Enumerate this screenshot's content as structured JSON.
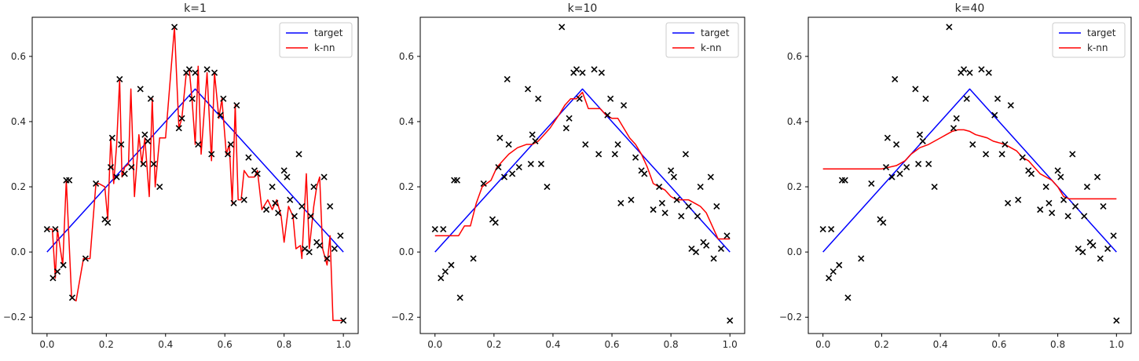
{
  "chart_data": [
    {
      "type": "line",
      "title": "k=1",
      "xlim": [
        -0.05,
        1.05
      ],
      "ylim": [
        -0.25,
        0.72
      ],
      "xticks": [
        "0.0",
        "0.2",
        "0.4",
        "0.6",
        "0.8",
        "1.0"
      ],
      "yticks": [
        "−0.2",
        "0.0",
        "0.2",
        "0.4",
        "0.6"
      ],
      "legend": {
        "placement": "top-right",
        "entries": [
          "target",
          "k-nn"
        ]
      },
      "grid": false,
      "series": [
        {
          "name": "target",
          "color": "#0000ff",
          "kind": "line",
          "x": [
            0,
            0.5,
            1
          ],
          "y": [
            0,
            0.5,
            0
          ]
        },
        {
          "name": "k-nn",
          "color": "#ff0000",
          "kind": "line",
          "x": [
            0.0,
            0.018,
            0.028,
            0.035,
            0.053,
            0.065,
            0.083,
            0.098,
            0.123,
            0.145,
            0.165,
            0.175,
            0.195,
            0.205,
            0.215,
            0.225,
            0.235,
            0.245,
            0.253,
            0.262,
            0.275,
            0.283,
            0.295,
            0.31,
            0.32,
            0.33,
            0.345,
            0.355,
            0.365,
            0.38,
            0.4,
            0.43,
            0.445,
            0.455,
            0.47,
            0.48,
            0.49,
            0.5,
            0.51,
            0.52,
            0.54,
            0.555,
            0.565,
            0.58,
            0.59,
            0.605,
            0.615,
            0.625,
            0.635,
            0.645,
            0.655,
            0.665,
            0.68,
            0.7,
            0.71,
            0.725,
            0.745,
            0.76,
            0.775,
            0.79,
            0.8,
            0.815,
            0.83,
            0.84,
            0.855,
            0.86,
            0.875,
            0.885,
            0.9,
            0.91,
            0.92,
            0.93,
            0.945,
            0.955,
            0.965,
            0.99,
            1.0
          ],
          "y": [
            0.07,
            0.07,
            -0.08,
            0.07,
            -0.04,
            0.22,
            -0.14,
            -0.15,
            -0.02,
            -0.02,
            0.21,
            0.21,
            0.2,
            0.1,
            0.35,
            0.21,
            0.33,
            0.53,
            0.23,
            0.26,
            0.27,
            0.5,
            0.17,
            0.36,
            0.27,
            0.35,
            0.17,
            0.47,
            0.2,
            0.35,
            0.35,
            0.69,
            0.38,
            0.41,
            0.55,
            0.56,
            0.46,
            0.33,
            0.57,
            0.3,
            0.55,
            0.28,
            0.55,
            0.41,
            0.47,
            0.3,
            0.33,
            0.15,
            0.45,
            0.16,
            0.16,
            0.25,
            0.23,
            0.23,
            0.25,
            0.13,
            0.16,
            0.13,
            0.16,
            0.11,
            0.03,
            0.14,
            0.11,
            0.01,
            0.02,
            -0.02,
            0.24,
            0.01,
            0.14,
            0.2,
            0.23,
            0.01,
            -0.04,
            0.05,
            -0.21,
            -0.21,
            -0.21
          ]
        },
        {
          "name": "",
          "color": "#000000",
          "kind": "scatter",
          "x": [
            0.0,
            0.02,
            0.028,
            0.035,
            0.055,
            0.065,
            0.075,
            0.085,
            0.13,
            0.165,
            0.195,
            0.205,
            0.215,
            0.22,
            0.235,
            0.245,
            0.25,
            0.262,
            0.285,
            0.315,
            0.325,
            0.33,
            0.34,
            0.35,
            0.36,
            0.38,
            0.43,
            0.445,
            0.455,
            0.47,
            0.48,
            0.49,
            0.5,
            0.51,
            0.54,
            0.555,
            0.565,
            0.585,
            0.595,
            0.61,
            0.62,
            0.63,
            0.64,
            0.665,
            0.68,
            0.7,
            0.71,
            0.74,
            0.76,
            0.77,
            0.78,
            0.8,
            0.81,
            0.82,
            0.835,
            0.85,
            0.86,
            0.87,
            0.885,
            0.89,
            0.9,
            0.91,
            0.92,
            0.935,
            0.945,
            0.955,
            0.97,
            0.99,
            1.0
          ],
          "y": [
            0.07,
            -0.08,
            0.07,
            -0.06,
            -0.04,
            0.22,
            0.22,
            -0.14,
            -0.02,
            0.21,
            0.1,
            0.09,
            0.26,
            0.35,
            0.23,
            0.53,
            0.33,
            0.24,
            0.26,
            0.5,
            0.27,
            0.36,
            0.34,
            0.47,
            0.27,
            0.2,
            0.69,
            0.38,
            0.41,
            0.55,
            0.56,
            0.47,
            0.55,
            0.33,
            0.56,
            0.3,
            0.55,
            0.42,
            0.47,
            0.3,
            0.33,
            0.15,
            0.45,
            0.16,
            0.29,
            0.25,
            0.24,
            0.13,
            0.2,
            0.15,
            0.12,
            0.25,
            0.23,
            0.16,
            0.11,
            0.3,
            0.14,
            0.01,
            0.0,
            0.11,
            0.2,
            0.03,
            0.02,
            0.23,
            -0.02,
            0.14,
            0.01,
            0.05,
            -0.21
          ]
        }
      ]
    },
    {
      "type": "line",
      "title": "k=10",
      "xlim": [
        -0.05,
        1.05
      ],
      "ylim": [
        -0.25,
        0.72
      ],
      "xticks": [
        "0.0",
        "0.2",
        "0.4",
        "0.6",
        "0.8",
        "1.0"
      ],
      "yticks": [
        "−0.2",
        "0.0",
        "0.2",
        "0.4",
        "0.6"
      ],
      "legend": {
        "placement": "top-right",
        "entries": [
          "target",
          "k-nn"
        ]
      },
      "grid": false,
      "series": [
        {
          "name": "target",
          "color": "#0000ff",
          "kind": "line",
          "x": [
            0,
            0.5,
            1
          ],
          "y": [
            0,
            0.5,
            0
          ]
        },
        {
          "name": "k-nn",
          "color": "#ff0000",
          "kind": "line",
          "x": [
            0.0,
            0.08,
            0.1,
            0.12,
            0.14,
            0.16,
            0.19,
            0.21,
            0.23,
            0.25,
            0.28,
            0.31,
            0.33,
            0.35,
            0.37,
            0.39,
            0.42,
            0.44,
            0.46,
            0.48,
            0.5,
            0.52,
            0.54,
            0.56,
            0.58,
            0.6,
            0.62,
            0.64,
            0.66,
            0.68,
            0.7,
            0.72,
            0.74,
            0.76,
            0.78,
            0.8,
            0.82,
            0.84,
            0.86,
            0.88,
            0.9,
            0.92,
            0.94,
            0.96,
            1.0
          ],
          "y": [
            0.05,
            0.05,
            0.08,
            0.08,
            0.15,
            0.2,
            0.22,
            0.26,
            0.28,
            0.3,
            0.32,
            0.33,
            0.33,
            0.34,
            0.36,
            0.38,
            0.42,
            0.45,
            0.47,
            0.47,
            0.49,
            0.44,
            0.44,
            0.44,
            0.42,
            0.41,
            0.41,
            0.38,
            0.35,
            0.33,
            0.3,
            0.26,
            0.21,
            0.2,
            0.19,
            0.17,
            0.16,
            0.16,
            0.16,
            0.15,
            0.14,
            0.12,
            0.08,
            0.04,
            0.04
          ]
        },
        {
          "name": "",
          "color": "#000000",
          "kind": "scatter",
          "x": [
            0.0,
            0.02,
            0.028,
            0.035,
            0.055,
            0.065,
            0.075,
            0.085,
            0.13,
            0.165,
            0.195,
            0.205,
            0.215,
            0.22,
            0.235,
            0.245,
            0.25,
            0.262,
            0.285,
            0.315,
            0.325,
            0.33,
            0.34,
            0.35,
            0.36,
            0.38,
            0.43,
            0.445,
            0.455,
            0.47,
            0.48,
            0.49,
            0.5,
            0.51,
            0.54,
            0.555,
            0.565,
            0.585,
            0.595,
            0.61,
            0.62,
            0.63,
            0.64,
            0.665,
            0.68,
            0.7,
            0.71,
            0.74,
            0.76,
            0.77,
            0.78,
            0.8,
            0.81,
            0.82,
            0.835,
            0.85,
            0.86,
            0.87,
            0.885,
            0.89,
            0.9,
            0.91,
            0.92,
            0.935,
            0.945,
            0.955,
            0.97,
            0.99,
            1.0
          ],
          "y": [
            0.07,
            -0.08,
            0.07,
            -0.06,
            -0.04,
            0.22,
            0.22,
            -0.14,
            -0.02,
            0.21,
            0.1,
            0.09,
            0.26,
            0.35,
            0.23,
            0.53,
            0.33,
            0.24,
            0.26,
            0.5,
            0.27,
            0.36,
            0.34,
            0.47,
            0.27,
            0.2,
            0.69,
            0.38,
            0.41,
            0.55,
            0.56,
            0.47,
            0.55,
            0.33,
            0.56,
            0.3,
            0.55,
            0.42,
            0.47,
            0.3,
            0.33,
            0.15,
            0.45,
            0.16,
            0.29,
            0.25,
            0.24,
            0.13,
            0.2,
            0.15,
            0.12,
            0.25,
            0.23,
            0.16,
            0.11,
            0.3,
            0.14,
            0.01,
            0.0,
            0.11,
            0.2,
            0.03,
            0.02,
            0.23,
            -0.02,
            0.14,
            0.01,
            0.05,
            -0.21
          ]
        }
      ]
    },
    {
      "type": "line",
      "title": "k=40",
      "xlim": [
        -0.05,
        1.05
      ],
      "ylim": [
        -0.25,
        0.72
      ],
      "xticks": [
        "0.0",
        "0.2",
        "0.4",
        "0.6",
        "0.8",
        "1.0"
      ],
      "yticks": [
        "−0.2",
        "0.0",
        "0.2",
        "0.4",
        "0.6"
      ],
      "legend": {
        "placement": "top-right",
        "entries": [
          "target",
          "k-nn"
        ]
      },
      "grid": false,
      "series": [
        {
          "name": "target",
          "color": "#0000ff",
          "kind": "line",
          "x": [
            0,
            0.5,
            1
          ],
          "y": [
            0,
            0.5,
            0
          ]
        },
        {
          "name": "k-nn",
          "color": "#ff0000",
          "kind": "line",
          "x": [
            0.0,
            0.2,
            0.25,
            0.28,
            0.3,
            0.33,
            0.36,
            0.38,
            0.4,
            0.42,
            0.44,
            0.46,
            0.48,
            0.5,
            0.52,
            0.54,
            0.56,
            0.58,
            0.6,
            0.62,
            0.64,
            0.66,
            0.68,
            0.7,
            0.72,
            0.74,
            0.76,
            0.78,
            0.8,
            0.82,
            0.84,
            1.0
          ],
          "y": [
            0.255,
            0.255,
            0.265,
            0.28,
            0.3,
            0.32,
            0.33,
            0.34,
            0.35,
            0.36,
            0.37,
            0.375,
            0.375,
            0.37,
            0.36,
            0.355,
            0.35,
            0.34,
            0.335,
            0.33,
            0.32,
            0.31,
            0.29,
            0.28,
            0.26,
            0.24,
            0.23,
            0.22,
            0.2,
            0.17,
            0.163,
            0.163
          ]
        },
        {
          "name": "",
          "color": "#000000",
          "kind": "scatter",
          "x": [
            0.0,
            0.02,
            0.028,
            0.035,
            0.055,
            0.065,
            0.075,
            0.085,
            0.13,
            0.165,
            0.195,
            0.205,
            0.215,
            0.22,
            0.235,
            0.245,
            0.25,
            0.262,
            0.285,
            0.315,
            0.325,
            0.33,
            0.34,
            0.35,
            0.36,
            0.38,
            0.43,
            0.445,
            0.455,
            0.47,
            0.48,
            0.49,
            0.5,
            0.51,
            0.54,
            0.555,
            0.565,
            0.585,
            0.595,
            0.61,
            0.62,
            0.63,
            0.64,
            0.665,
            0.68,
            0.7,
            0.71,
            0.74,
            0.76,
            0.77,
            0.78,
            0.8,
            0.81,
            0.82,
            0.835,
            0.85,
            0.86,
            0.87,
            0.885,
            0.89,
            0.9,
            0.91,
            0.92,
            0.935,
            0.945,
            0.955,
            0.97,
            0.99,
            1.0
          ],
          "y": [
            0.07,
            -0.08,
            0.07,
            -0.06,
            -0.04,
            0.22,
            0.22,
            -0.14,
            -0.02,
            0.21,
            0.1,
            0.09,
            0.26,
            0.35,
            0.23,
            0.53,
            0.33,
            0.24,
            0.26,
            0.5,
            0.27,
            0.36,
            0.34,
            0.47,
            0.27,
            0.2,
            0.69,
            0.38,
            0.41,
            0.55,
            0.56,
            0.47,
            0.55,
            0.33,
            0.56,
            0.3,
            0.55,
            0.42,
            0.47,
            0.3,
            0.33,
            0.15,
            0.45,
            0.16,
            0.29,
            0.25,
            0.24,
            0.13,
            0.2,
            0.15,
            0.12,
            0.25,
            0.23,
            0.16,
            0.11,
            0.3,
            0.14,
            0.01,
            0.0,
            0.11,
            0.2,
            0.03,
            0.02,
            0.23,
            -0.02,
            0.14,
            0.01,
            0.05,
            -0.21
          ]
        }
      ]
    }
  ]
}
